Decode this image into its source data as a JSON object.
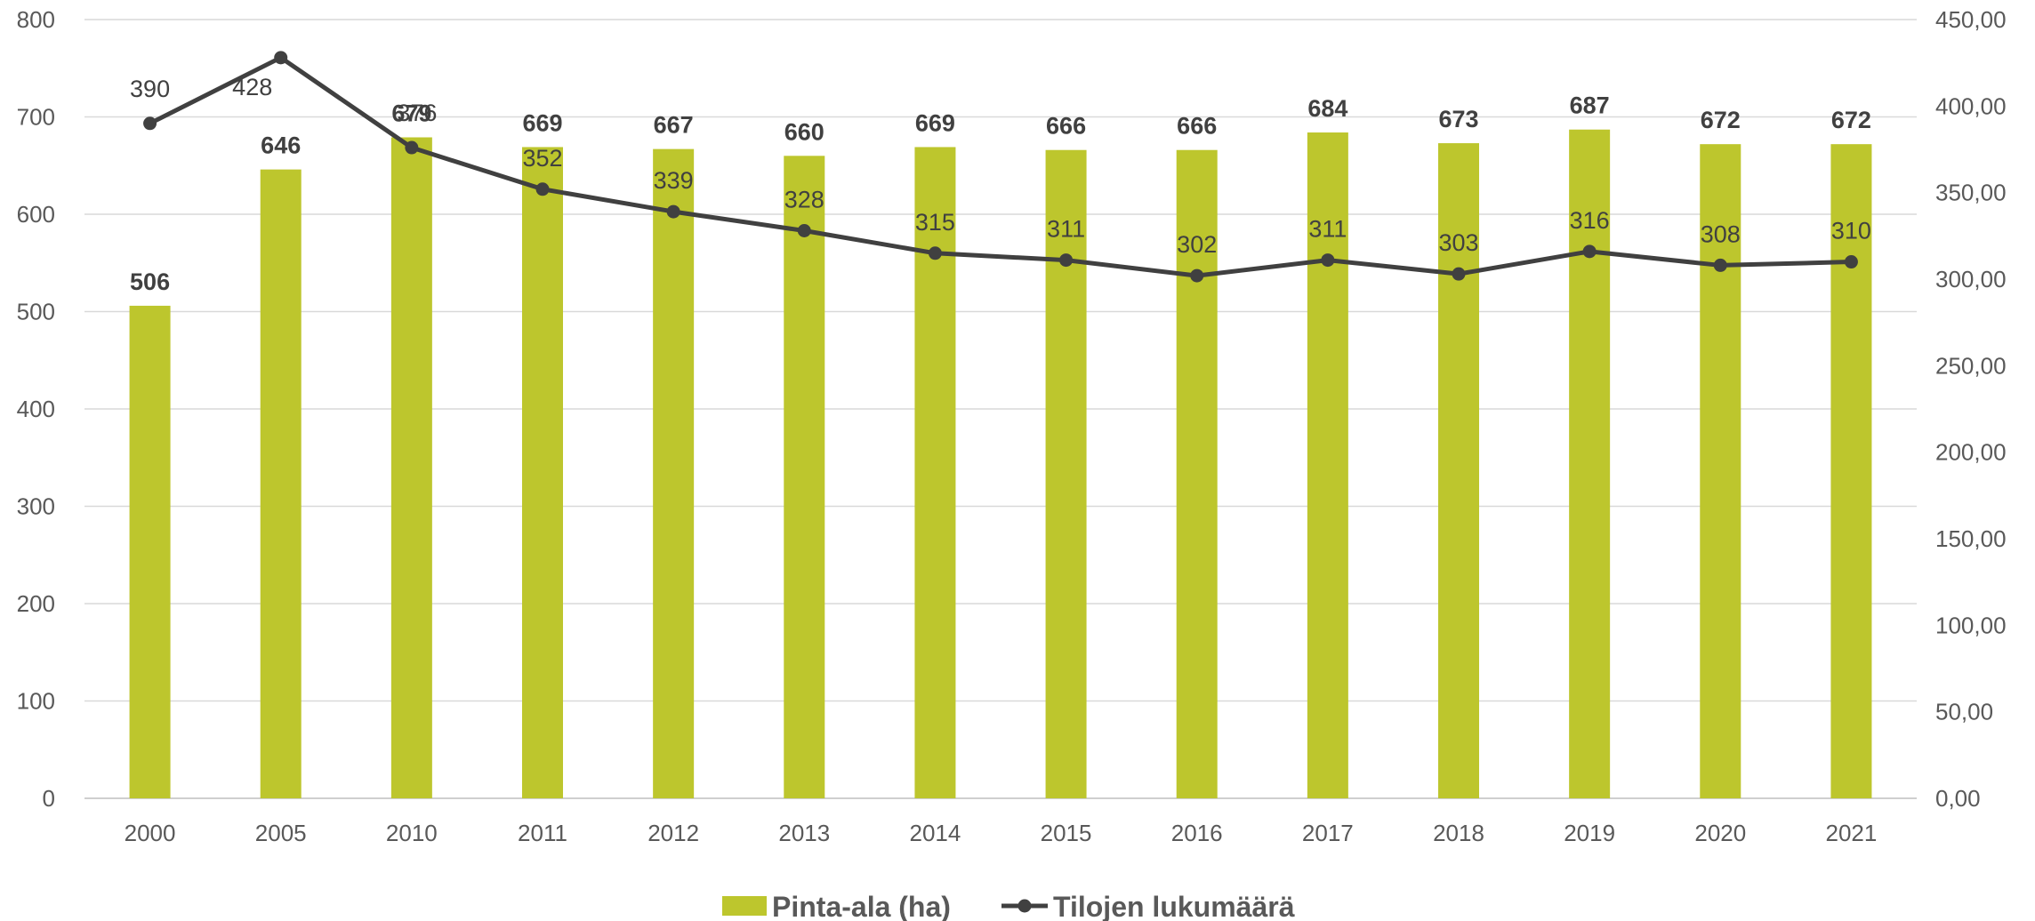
{
  "chart_data": {
    "type": "bar",
    "categories": [
      "2000",
      "2005",
      "2010",
      "2011",
      "2012",
      "2013",
      "2014",
      "2015",
      "2016",
      "2017",
      "2018",
      "2019",
      "2020",
      "2021"
    ],
    "series": [
      {
        "name": "Pinta-ala (ha)",
        "type": "bar",
        "axis": "left",
        "color": "#BDC62D",
        "values": [
          506,
          646,
          679,
          669,
          667,
          660,
          669,
          666,
          666,
          684,
          673,
          687,
          672,
          672
        ],
        "labels": [
          "506",
          "646",
          "679",
          "669",
          "667",
          "660",
          "669",
          "666",
          "666",
          "684",
          "673",
          "687",
          "672",
          "672"
        ]
      },
      {
        "name": "Tilojen lukumäärä",
        "type": "line",
        "axis": "right",
        "color": "#404040",
        "values": [
          390,
          428,
          376,
          352,
          339,
          328,
          315,
          311,
          302,
          311,
          303,
          316,
          308,
          310
        ],
        "labels": [
          "390",
          "428",
          "376",
          "352",
          "339",
          "328",
          "315",
          "311",
          "302",
          "311",
          "303",
          "316",
          "308",
          "310"
        ]
      }
    ],
    "y_left": {
      "min": 0,
      "max": 800,
      "step": 100,
      "ticks": [
        "0",
        "100",
        "200",
        "300",
        "400",
        "500",
        "600",
        "700",
        "800"
      ]
    },
    "y_right": {
      "min": 0,
      "max": 450,
      "step": 50,
      "ticks": [
        "0,00",
        "50,00",
        "100,00",
        "150,00",
        "200,00",
        "250,00",
        "300,00",
        "350,00",
        "400,00",
        "450,00"
      ]
    },
    "grid": true,
    "legend_position": "bottom"
  }
}
